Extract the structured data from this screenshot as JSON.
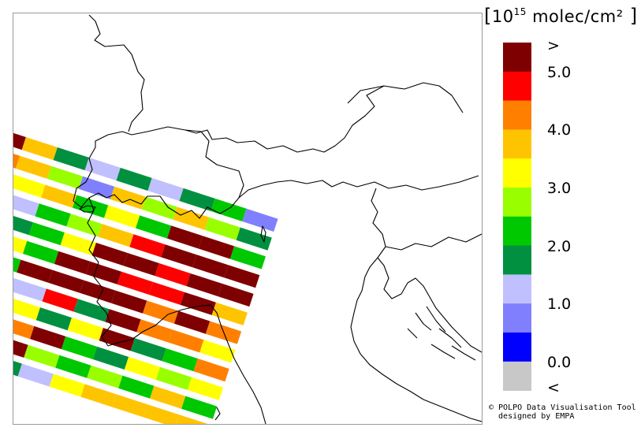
{
  "units": {
    "base": "10",
    "exponent": "15",
    "unit": " molec/cm²"
  },
  "legend": {
    "over_label": ">",
    "under_label": "<",
    "tick_labels": [
      "5.0",
      "4.0",
      "3.0",
      "2.0",
      "1.0",
      "0.0"
    ],
    "colors_top_to_bottom": [
      "#7f0000",
      "#ff0000",
      "#ff8000",
      "#ffc400",
      "#ffff00",
      "#99ff00",
      "#00c800",
      "#009040",
      "#c0c0ff",
      "#8080ff",
      "#0000ff",
      "#c8c8c8"
    ]
  },
  "credit": {
    "line1": "© POLPO Data Visualisation Tool",
    "line2": "  designed by EMPA"
  },
  "swath": {
    "rows": [
      [
        "#7f0000",
        "#ffc400",
        "#009040",
        "#c0c0ff",
        "#009040",
        "#c0c0ff",
        "#009040",
        "#00c800",
        "#8080ff"
      ],
      [
        "#ff8000",
        "#ffc400",
        "#99ff00",
        "#8080ff",
        "#ffc400",
        "#99ff00",
        "#ffc400",
        "#99ff00",
        "#009040"
      ],
      [
        "#ffff00",
        "#ffff00",
        "#ffc400",
        "#00c800",
        "#ffff00",
        "#00c800",
        "#7f0000",
        "#7f0000",
        "#00c800"
      ],
      [
        "#ffff00",
        "#c0c0ff",
        "#00c800",
        "#99ff00",
        "#ffc400",
        "#ff0000",
        "#7f0000",
        "#7f0000",
        "#7f0000"
      ],
      [
        "#99ff00",
        "#009040",
        "#00c800",
        "#ffff00",
        "#7f0000",
        "#7f0000",
        "#ff0000",
        "#7f0000",
        "#7f0000"
      ],
      [
        "#00c800",
        "#ffff00",
        "#00c800",
        "#7f0000",
        "#7f0000",
        "#ff0000",
        "#ff0000",
        "#7f0000",
        "#ffc400"
      ],
      [
        "#00c800",
        "#00c800",
        "#7f0000",
        "#7f0000",
        "#7f0000",
        "#7f0000",
        "#ff8000",
        "#7f0000",
        "#ff8000"
      ],
      [
        "#0000ff",
        "#c0c0ff",
        "#c0c0ff",
        "#ff0000",
        "#009040",
        "#7f0000",
        "#ff8000",
        "#ff8000",
        "#ffff00"
      ],
      [
        "#ffff00",
        "#c0c0ff",
        "#ffff00",
        "#009040",
        "#ffff00",
        "#7f0000",
        "#009040",
        "#00c800",
        "#ff8000"
      ],
      [
        "#00c800",
        "#009040",
        "#ff8000",
        "#7f0000",
        "#00c800",
        "#009040",
        "#ffff00",
        "#99ff00",
        "#ffff00"
      ],
      [
        "#c0c0ff",
        "#009040",
        "#7f0000",
        "#99ff00",
        "#00c800",
        "#99ff00",
        "#00c800",
        "#ffc400",
        "#00c800"
      ],
      [
        "#00c800",
        "#99ff00",
        "#009040",
        "#c0c0ff",
        "#ffff00",
        "#ffc400",
        "#ffc400",
        "#ffc400",
        "#ffc400"
      ]
    ]
  }
}
